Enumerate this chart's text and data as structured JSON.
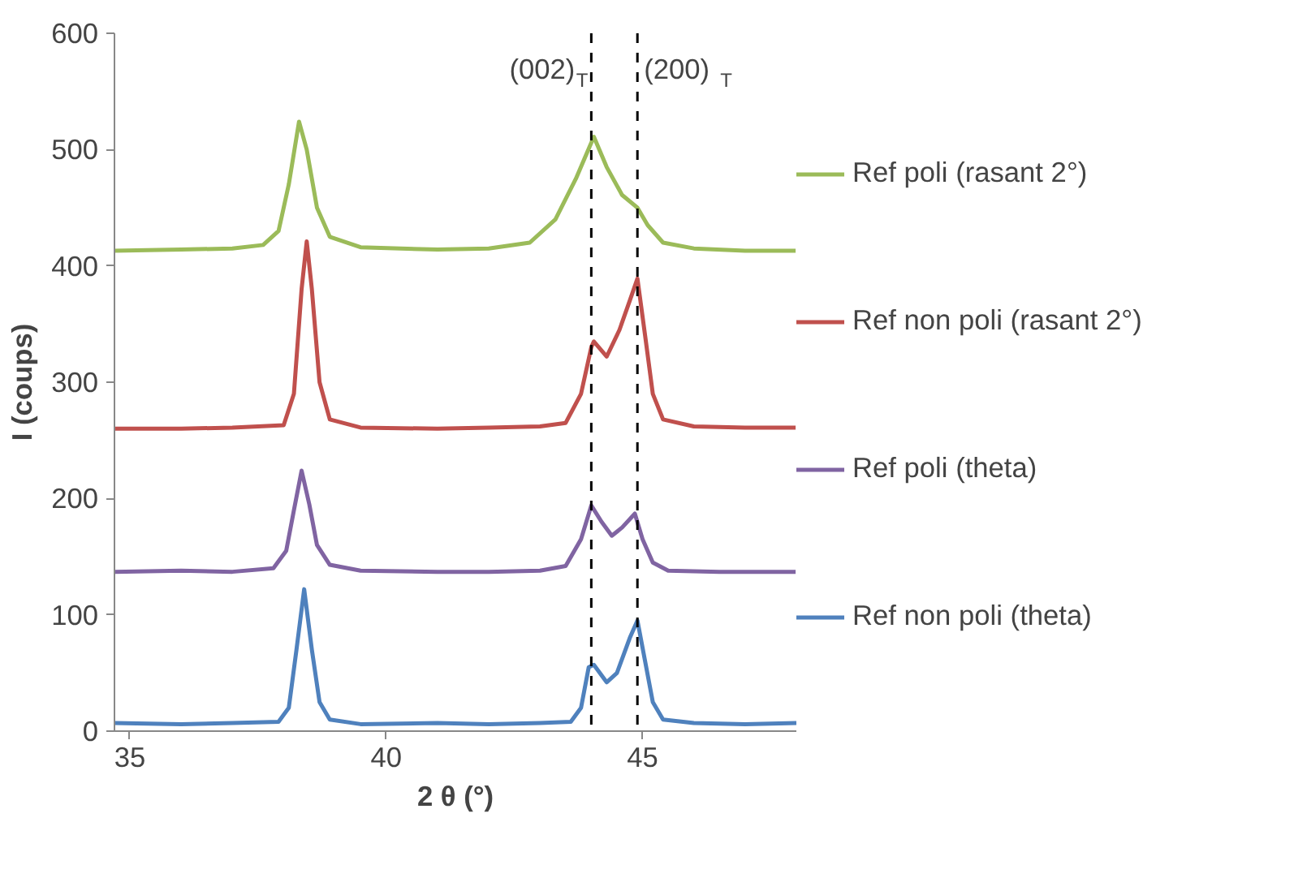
{
  "chart_data": {
    "type": "line",
    "xlabel": "2 θ (°)",
    "ylabel": "I (coups)",
    "xlim": [
      34.7,
      48.0
    ],
    "xticks": [
      35,
      40,
      45
    ],
    "ylim": [
      0,
      600
    ],
    "yticks": [
      0,
      100,
      200,
      300,
      400,
      500,
      600
    ],
    "grid": false,
    "legend": "right",
    "marker": "none",
    "line_style": "solid",
    "ref_lines": [
      {
        "axis": "x",
        "value": 44.0,
        "label": "(002)$_{T}$",
        "color": "#000000",
        "line_style": "dashed"
      },
      {
        "axis": "x",
        "value": 44.9,
        "label": "(200)$_{T}$",
        "color": "#000000",
        "line_style": "dashed"
      }
    ],
    "series": [
      {
        "name": "Ref poli (rasant 2°)",
        "color": "#9bbb59",
        "x": [
          34.7,
          36,
          37,
          37.6,
          37.9,
          38.1,
          38.3,
          38.45,
          38.65,
          38.9,
          39.5,
          41,
          42,
          42.8,
          43.3,
          43.7,
          44.05,
          44.3,
          44.6,
          44.9,
          45.1,
          45.4,
          46,
          47,
          48
        ],
        "values": [
          413,
          414,
          415,
          418,
          430,
          470,
          524,
          500,
          450,
          425,
          416,
          414,
          415,
          420,
          440,
          475,
          511,
          485,
          461,
          450,
          435,
          420,
          415,
          413,
          413
        ]
      },
      {
        "name": "Ref non poli (rasant 2°)",
        "color": "#c0504d",
        "x": [
          34.7,
          36,
          37,
          38.0,
          38.2,
          38.35,
          38.45,
          38.55,
          38.7,
          38.9,
          39.5,
          41,
          42,
          43,
          43.5,
          43.8,
          44.0,
          44.05,
          44.3,
          44.55,
          44.75,
          44.9,
          45.05,
          45.2,
          45.4,
          46,
          47,
          48
        ],
        "values": [
          260,
          260,
          261,
          263,
          290,
          380,
          421,
          380,
          300,
          268,
          261,
          260,
          261,
          262,
          265,
          290,
          330,
          335,
          322,
          345,
          370,
          389,
          340,
          290,
          268,
          262,
          261,
          261
        ]
      },
      {
        "name": "Ref poli (theta)",
        "color": "#8064a2",
        "x": [
          34.7,
          36,
          37,
          37.8,
          38.05,
          38.2,
          38.35,
          38.5,
          38.65,
          38.9,
          39.5,
          41,
          42,
          43,
          43.5,
          43.8,
          44.0,
          44.2,
          44.4,
          44.6,
          44.85,
          45.0,
          45.2,
          45.5,
          46.5,
          48
        ],
        "values": [
          137,
          138,
          137,
          140,
          155,
          190,
          224,
          195,
          160,
          143,
          138,
          137,
          137,
          138,
          142,
          165,
          194,
          180,
          168,
          175,
          187,
          165,
          145,
          138,
          137,
          137
        ]
      },
      {
        "name": "Ref non poli (theta)",
        "color": "#4f81bd",
        "x": [
          34.7,
          36,
          37,
          37.9,
          38.1,
          38.25,
          38.4,
          38.55,
          38.7,
          38.9,
          39.5,
          41,
          42,
          43,
          43.6,
          43.8,
          43.95,
          44.05,
          44.3,
          44.5,
          44.75,
          44.9,
          45.05,
          45.2,
          45.4,
          46,
          47,
          48
        ],
        "values": [
          7,
          6,
          7,
          8,
          20,
          70,
          122,
          70,
          25,
          10,
          6,
          7,
          6,
          7,
          8,
          20,
          55,
          57,
          42,
          50,
          80,
          95,
          60,
          25,
          10,
          7,
          6,
          7
        ]
      }
    ]
  }
}
